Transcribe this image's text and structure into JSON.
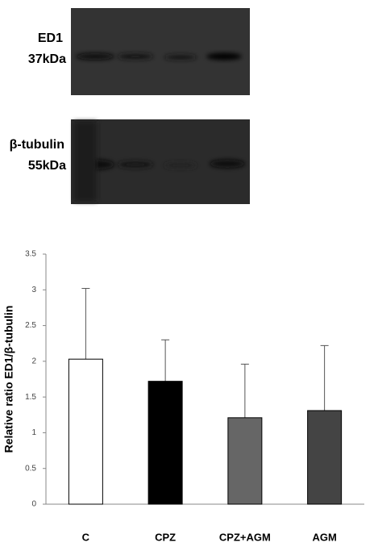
{
  "blots": [
    {
      "label": "ED1",
      "size": "37kDa"
    },
    {
      "label": "β-tubulin",
      "size": "55kDa"
    }
  ],
  "chart_data": {
    "type": "bar",
    "y_label": "Relative ratio ED1/β-tubulin",
    "categories": [
      "C",
      "CPZ",
      "CPZ+AGM",
      "AGM"
    ],
    "values": [
      2.03,
      1.72,
      1.21,
      1.31
    ],
    "errors": [
      0.99,
      0.58,
      0.75,
      0.91
    ],
    "colors": [
      "#ffffff",
      "#000000",
      "#666666",
      "#444444"
    ],
    "ylim": [
      0,
      3.5
    ],
    "yticks": [
      0,
      0.5,
      1,
      1.5,
      2,
      2.5,
      3,
      3.5
    ],
    "grid": false
  }
}
